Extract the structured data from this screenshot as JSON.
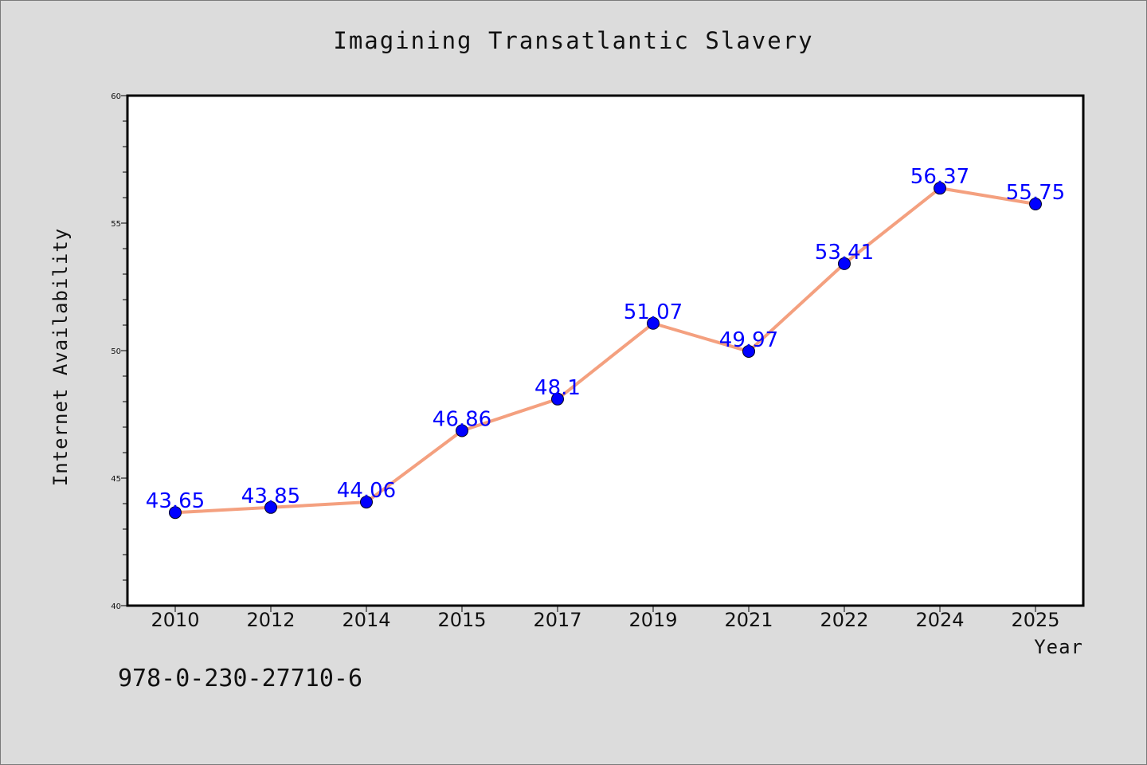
{
  "chart_data": {
    "type": "line",
    "title": "Imagining Transatlantic Slavery",
    "xlabel": "Year",
    "ylabel": "Internet Availability",
    "categories": [
      "2010",
      "2012",
      "2014",
      "2015",
      "2017",
      "2019",
      "2021",
      "2022",
      "2024",
      "2025"
    ],
    "series": [
      {
        "values": [
          43.65,
          43.85,
          44.06,
          46.86,
          48.1,
          51.07,
          49.97,
          53.41,
          56.37,
          55.75
        ],
        "line_color": "#f4a07f",
        "marker_color": "#0000ff"
      }
    ],
    "data_labels": [
      "43.65",
      "43.85",
      "44.06",
      "46.86",
      "48.1",
      "51.07",
      "49.97",
      "53.41",
      "56.37",
      "55.75"
    ],
    "ylim": [
      40,
      60
    ],
    "y_ticks": [
      "40",
      "45",
      "50",
      "55",
      "60"
    ],
    "grid": false,
    "legend": "none"
  },
  "footer": {
    "isbn": "978-0-230-27710-6"
  },
  "colors": {
    "background": "#dcdcdc",
    "plot_background": "#ffffff"
  }
}
